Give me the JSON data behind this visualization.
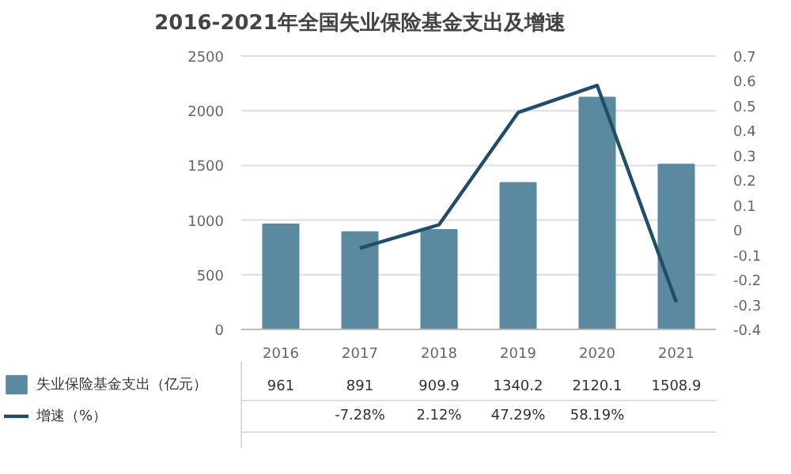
{
  "chart_data": {
    "type": "bar",
    "title": "2016-2021年全国失业保险基金支出及增速",
    "categories": [
      "2016",
      "2017",
      "2018",
      "2019",
      "2020",
      "2021"
    ],
    "series": [
      {
        "name": "失业保险基金支出（亿元）",
        "color": "#5b8aa0",
        "values": [
          961,
          891,
          909.9,
          1340.2,
          2120.1,
          1508.9
        ],
        "value_labels": [
          "961",
          "891",
          "909.9",
          "1340.2",
          "2120.1",
          "1508.9"
        ]
      },
      {
        "name": "增速（%）",
        "type": "line",
        "axis": "y2",
        "color": "#1f4e66",
        "values": [
          null,
          -0.0728,
          0.0212,
          0.4729,
          0.5819,
          -0.29
        ],
        "value_labels": [
          null,
          "-7.28%",
          "2.12%",
          "47.29%",
          "58.19%",
          null
        ]
      }
    ],
    "ylim": [
      0,
      2500
    ],
    "yticks": [
      0,
      500,
      1000,
      1500,
      2000,
      2500
    ],
    "y2lim": [
      -0.4,
      0.7
    ],
    "y2ticks": [
      -0.4,
      -0.3,
      -0.2,
      -0.1,
      0,
      0.1,
      0.2,
      0.3,
      0.4,
      0.5,
      0.6,
      0.7
    ],
    "grid": "y",
    "legend": "bottom"
  }
}
